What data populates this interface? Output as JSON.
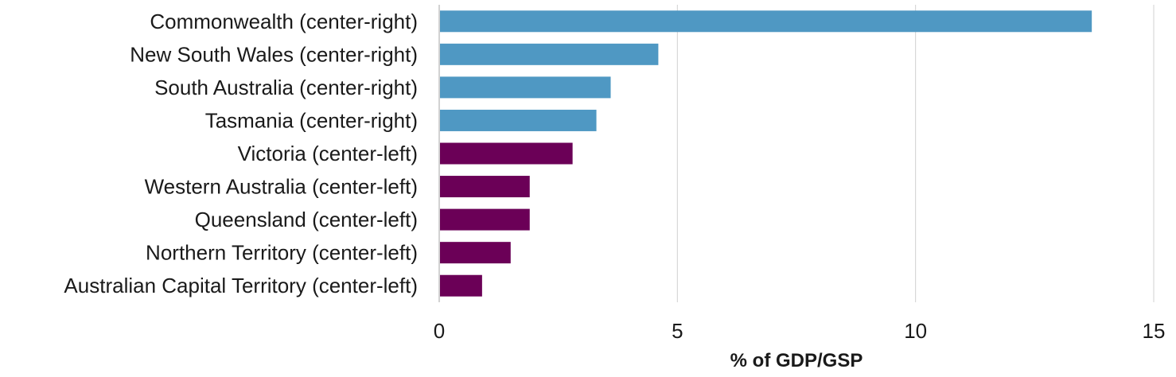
{
  "chart_data": {
    "type": "bar",
    "orientation": "horizontal",
    "categories": [
      "Commonwealth (center-right)",
      "New South Wales (center-right)",
      "South Australia (center-right)",
      "Tasmania (center-right)",
      "Victoria (center-left)",
      "Western Australia (center-left)",
      "Queensland (center-left)",
      "Northern Territory (center-left)",
      "Australian Capital Territory (center-left)"
    ],
    "values": [
      13.7,
      4.6,
      3.6,
      3.3,
      2.8,
      1.9,
      1.9,
      1.5,
      0.9
    ],
    "bar_colors": [
      "#4f98c3",
      "#4f98c3",
      "#4f98c3",
      "#4f98c3",
      "#6b0057",
      "#6b0057",
      "#6b0057",
      "#6b0057",
      "#6b0057"
    ],
    "title": "",
    "xlabel": "% of GDP/GSP",
    "ylabel": "",
    "xlim": [
      0,
      15
    ],
    "xticks": [
      0,
      5,
      10,
      15
    ],
    "xtick_labels": [
      "0",
      "5",
      "10",
      "15"
    ],
    "grid": "vertical",
    "legend": "none"
  }
}
